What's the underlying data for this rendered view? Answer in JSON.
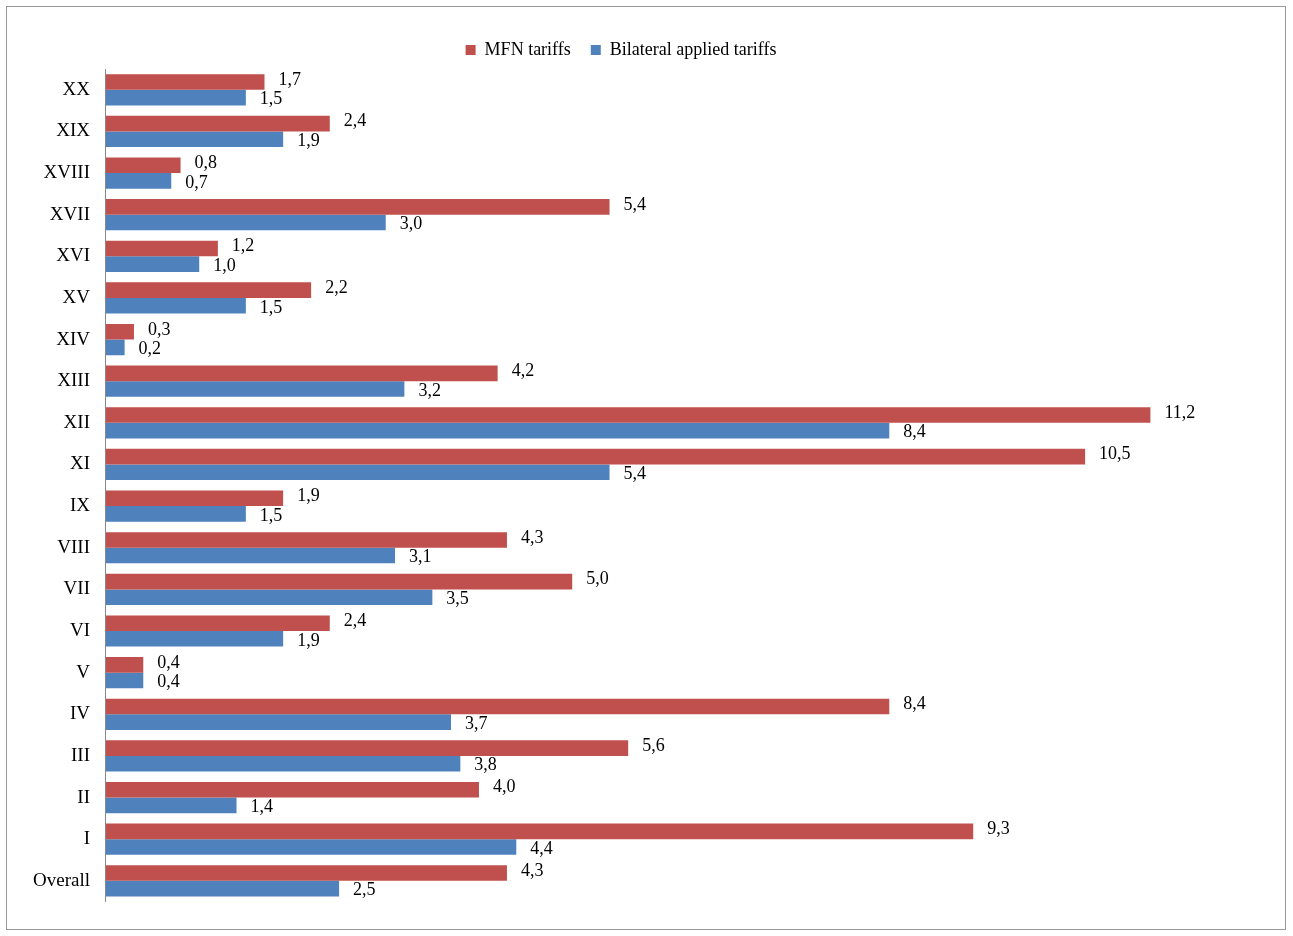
{
  "chart_data": {
    "type": "bar",
    "orientation": "horizontal",
    "legend": "top",
    "categories": [
      "XX",
      "XIX",
      "XVIII",
      "XVII",
      "XVI",
      "XV",
      "XIV",
      "XIII",
      "XII",
      "XI",
      "IX",
      "VIII",
      "VII",
      "VI",
      "V",
      "IV",
      "III",
      "II",
      "I",
      "Overall"
    ],
    "series": [
      {
        "name": "MFN tariffs",
        "color": "#c0504d",
        "values": [
          1.7,
          2.4,
          0.8,
          5.4,
          1.2,
          2.2,
          0.3,
          4.2,
          11.2,
          10.5,
          1.9,
          4.3,
          5.0,
          2.4,
          0.4,
          8.4,
          5.6,
          4.0,
          9.3,
          4.3
        ],
        "value_labels": [
          "1,7",
          "2,4",
          "0,8",
          "5,4",
          "1,2",
          "2,2",
          "0,3",
          "4,2",
          "11,2",
          "10,5",
          "1,9",
          "4,3",
          "5,0",
          "2,4",
          "0,4",
          "8,4",
          "5,6",
          "4,0",
          "9,3",
          "4,3"
        ]
      },
      {
        "name": "Bilateral applied tariffs",
        "color": "#4f81bd",
        "values": [
          1.5,
          1.9,
          0.7,
          3.0,
          1.0,
          1.5,
          0.2,
          3.2,
          8.4,
          5.4,
          1.5,
          3.1,
          3.5,
          1.9,
          0.4,
          3.7,
          3.8,
          1.4,
          4.4,
          2.5
        ],
        "value_labels": [
          "1,5",
          "1,9",
          "0,7",
          "3,0",
          "1,0",
          "1,5",
          "0,2",
          "3,2",
          "8,4",
          "5,4",
          "1,5",
          "3,1",
          "3,5",
          "1,9",
          "0,4",
          "3,7",
          "3,8",
          "1,4",
          "4,4",
          "2,5"
        ]
      }
    ]
  }
}
